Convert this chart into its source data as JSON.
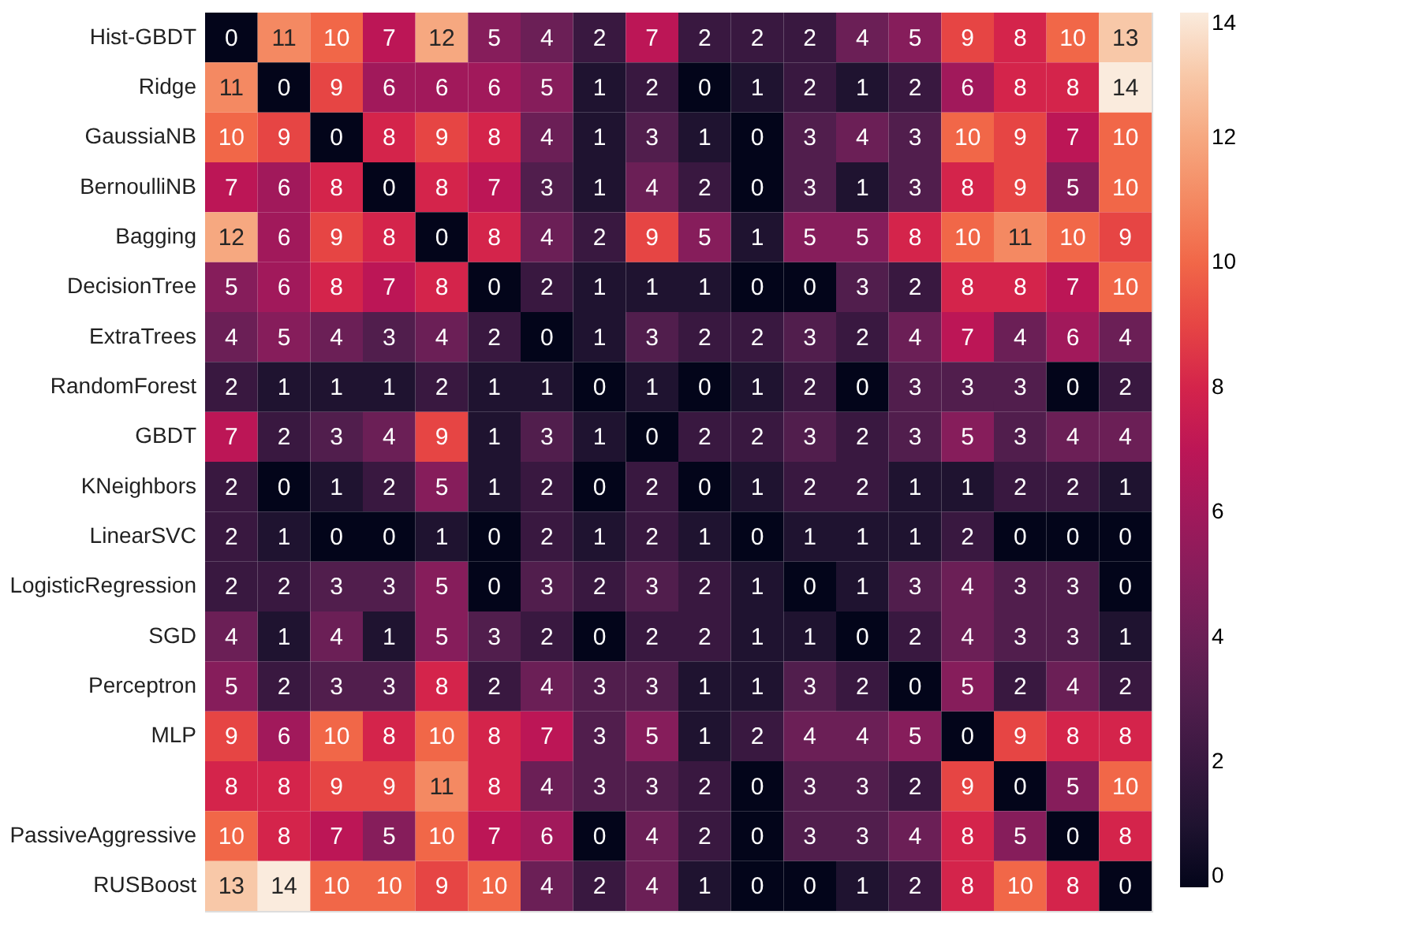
{
  "chart_data": {
    "type": "heatmap",
    "categories": [
      null,
      null,
      null,
      null,
      null,
      null,
      null,
      null,
      null,
      null,
      null,
      null,
      null,
      null,
      null,
      null,
      null,
      null
    ],
    "y_categories": [
      "Hist-GBDT",
      "Ridge",
      "GaussiaNB",
      "BernoulliNB",
      "Bagging",
      "DecisionTree",
      "ExtraTrees",
      "RandomForest",
      "GBDT",
      "KNeighbors",
      "LinearSVC",
      "LogisticRegression",
      "SGD",
      "Perceptron",
      "MLP",
      null,
      "PassiveAggressive",
      "RUSBoost"
    ],
    "cells": [
      [
        0,
        11,
        10,
        7,
        12,
        5,
        4,
        2,
        7,
        2,
        2,
        2,
        4,
        5,
        9,
        8,
        10,
        13
      ],
      [
        11,
        0,
        9,
        6,
        6,
        6,
        5,
        1,
        2,
        0,
        1,
        2,
        1,
        2,
        6,
        8,
        8,
        14
      ],
      [
        10,
        9,
        0,
        8,
        9,
        8,
        4,
        1,
        3,
        1,
        0,
        3,
        4,
        3,
        10,
        9,
        7,
        10
      ],
      [
        7,
        6,
        8,
        0,
        8,
        7,
        3,
        1,
        4,
        2,
        0,
        3,
        1,
        3,
        8,
        9,
        5,
        10
      ],
      [
        12,
        6,
        9,
        8,
        0,
        8,
        4,
        2,
        9,
        5,
        1,
        5,
        5,
        8,
        10,
        11,
        10,
        9
      ],
      [
        5,
        6,
        8,
        7,
        8,
        0,
        2,
        1,
        1,
        1,
        0,
        0,
        3,
        2,
        8,
        8,
        7,
        10
      ],
      [
        4,
        5,
        4,
        3,
        4,
        2,
        0,
        1,
        3,
        2,
        2,
        3,
        2,
        4,
        7,
        4,
        6,
        4
      ],
      [
        2,
        1,
        1,
        1,
        2,
        1,
        1,
        0,
        1,
        0,
        1,
        2,
        0,
        3,
        3,
        3,
        0,
        2
      ],
      [
        7,
        2,
        3,
        4,
        9,
        1,
        3,
        1,
        0,
        2,
        2,
        3,
        2,
        3,
        5,
        3,
        4,
        4
      ],
      [
        2,
        0,
        1,
        2,
        5,
        1,
        2,
        0,
        2,
        0,
        1,
        2,
        2,
        1,
        1,
        2,
        2,
        1
      ],
      [
        2,
        1,
        0,
        0,
        1,
        0,
        2,
        1,
        2,
        1,
        0,
        1,
        1,
        1,
        2,
        0,
        0,
        0
      ],
      [
        2,
        2,
        3,
        3,
        5,
        0,
        3,
        2,
        3,
        2,
        1,
        0,
        1,
        3,
        4,
        3,
        3,
        0
      ],
      [
        4,
        1,
        4,
        1,
        5,
        3,
        2,
        0,
        2,
        2,
        1,
        1,
        0,
        2,
        4,
        3,
        3,
        1
      ],
      [
        5,
        2,
        3,
        3,
        8,
        2,
        4,
        3,
        3,
        1,
        1,
        3,
        2,
        0,
        5,
        2,
        4,
        2
      ],
      [
        9,
        6,
        10,
        8,
        10,
        8,
        7,
        3,
        5,
        1,
        2,
        4,
        4,
        5,
        0,
        9,
        8,
        8
      ],
      [
        8,
        8,
        9,
        9,
        11,
        8,
        4,
        3,
        3,
        2,
        0,
        3,
        3,
        2,
        9,
        0,
        5,
        10
      ],
      [
        10,
        8,
        7,
        5,
        10,
        7,
        6,
        0,
        4,
        2,
        0,
        3,
        3,
        4,
        8,
        5,
        0,
        8
      ],
      [
        13,
        14,
        10,
        10,
        9,
        10,
        4,
        2,
        4,
        1,
        0,
        0,
        1,
        2,
        8,
        10,
        8,
        0
      ]
    ],
    "clim": [
      0,
      14
    ],
    "cticks": [
      0,
      2,
      4,
      6,
      8,
      10,
      12,
      14
    ],
    "data_labels": true,
    "tick_labels": "y"
  }
}
